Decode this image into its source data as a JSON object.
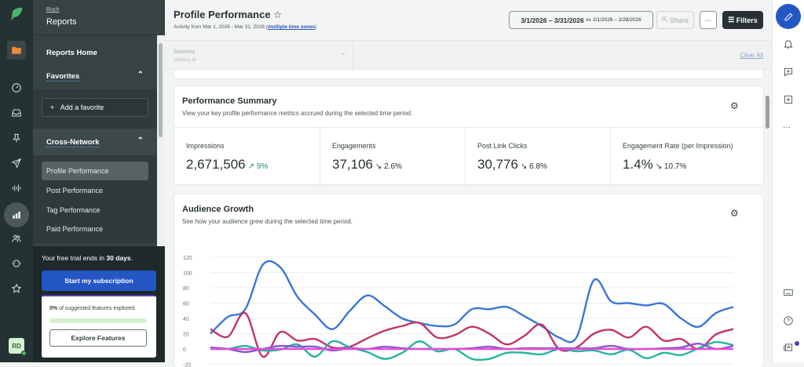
{
  "rail": {
    "avatar_initials": "RD",
    "icons": [
      "sprout-logo",
      "folder-icon",
      "gauge-icon",
      "inbox-icon",
      "pin-icon",
      "send-icon",
      "listening-icon",
      "reports-icon",
      "people-icon",
      "bot-icon",
      "star-icon"
    ]
  },
  "sidebar": {
    "breadcrumb": "Ruch",
    "title": "Reports",
    "reports_home": "Reports Home",
    "favorites": "Favorites",
    "add_favorite": "Add a favorite",
    "cross_network": "Cross-Network",
    "items": [
      {
        "label": "Profile Performance",
        "active": true
      },
      {
        "label": "Post Performance"
      },
      {
        "label": "Tag Performance"
      },
      {
        "label": "Paid Performance"
      }
    ],
    "trial_prefix": "Your free trial ends in ",
    "trial_days": "30 days",
    "trial_suffix": ".",
    "subscribe": "Start my subscription",
    "features_pct": "0%",
    "features_text": " of suggested features explored",
    "features_progress": 0,
    "explore": "Explore Features"
  },
  "header": {
    "title": "Profile Performance",
    "subtitle": "Activity from Mar 1, 2026 - Mar 31, 2026 (",
    "timezones": "multiple time zones",
    "subtitle_end": ")",
    "date_range": "3/1/2026 – 3/31/2026",
    "vs": "vs",
    "compare_range": "2/1/2026 – 2/28/2026",
    "share": "Share",
    "more": "···",
    "filters": "Filters"
  },
  "filterbar": {
    "sources_label": "Sources",
    "sources_value": "Viewing all",
    "clear_all": "Clear All"
  },
  "summary": {
    "title": "Performance Summary",
    "subtitle": "View your key profile performance metrics accrued during the selected time period.",
    "metrics": [
      {
        "label": "Impressions",
        "value": "2,671,506",
        "delta": "↗ 9%",
        "trend": "up"
      },
      {
        "label": "Engagements",
        "value": "37,106",
        "delta": "↘ 2.6%",
        "trend": "down"
      },
      {
        "label": "Post Link Clicks",
        "value": "30,776",
        "delta": "↘ 6.8%",
        "trend": "down"
      },
      {
        "label": "Engagement Rate (per Impression)",
        "value": "1.4%",
        "delta": "↘ 10.7%",
        "trend": "down"
      }
    ]
  },
  "audience": {
    "title": "Audience Growth",
    "subtitle": "See how your audience grew during the selected time period."
  },
  "chart_data": {
    "type": "line",
    "ylim": [
      -20,
      120
    ],
    "yticks": [
      "120",
      "100",
      "80",
      "60",
      "40",
      "20",
      "0",
      "-20"
    ],
    "grid": true,
    "series": [
      {
        "color": "#3a76d6",
        "values": [
          20,
          42,
          52,
          110,
          107,
          68,
          45,
          26,
          50,
          70,
          56,
          40,
          34,
          30,
          32,
          52,
          52,
          55,
          43,
          30,
          15,
          15,
          90,
          62,
          60,
          57,
          59,
          40,
          29,
          47,
          55
        ]
      },
      {
        "color": "#c2356a",
        "values": [
          26,
          16,
          47,
          -10,
          22,
          11,
          13,
          2,
          3,
          14,
          24,
          30,
          34,
          15,
          18,
          29,
          20,
          6,
          17,
          32,
          0,
          2,
          20,
          25,
          15,
          29,
          11,
          13,
          0,
          19,
          26
        ]
      },
      {
        "color": "#22b5a0",
        "values": [
          0,
          0,
          4,
          -2,
          -1,
          6,
          -10,
          10,
          2,
          -4,
          -13,
          -5,
          10,
          -3,
          0,
          -13,
          -13,
          -5,
          -5,
          -7,
          0,
          -3,
          -2,
          -7,
          -1,
          -12,
          -5,
          -8,
          1,
          9,
          5
        ]
      },
      {
        "color": "#8a55d6",
        "values": [
          2,
          0,
          -4,
          0,
          4,
          3,
          3,
          -2,
          1,
          0,
          3,
          1,
          0,
          0,
          0,
          1,
          3,
          0,
          1,
          1,
          1,
          1,
          1,
          4,
          0,
          0,
          1,
          2,
          7,
          0,
          4
        ]
      },
      {
        "color": "#e04ed6",
        "values": [
          0,
          0,
          0,
          0,
          0,
          0,
          0,
          0,
          0,
          0,
          0,
          0,
          0,
          0,
          0,
          0,
          0,
          0,
          0,
          0,
          0,
          0,
          0,
          0,
          0,
          0,
          0,
          0,
          0,
          0,
          0
        ]
      }
    ]
  },
  "colors": {
    "brand_blue": "#2456c4",
    "filters_bg": "#273133",
    "link": "#2456c4"
  }
}
